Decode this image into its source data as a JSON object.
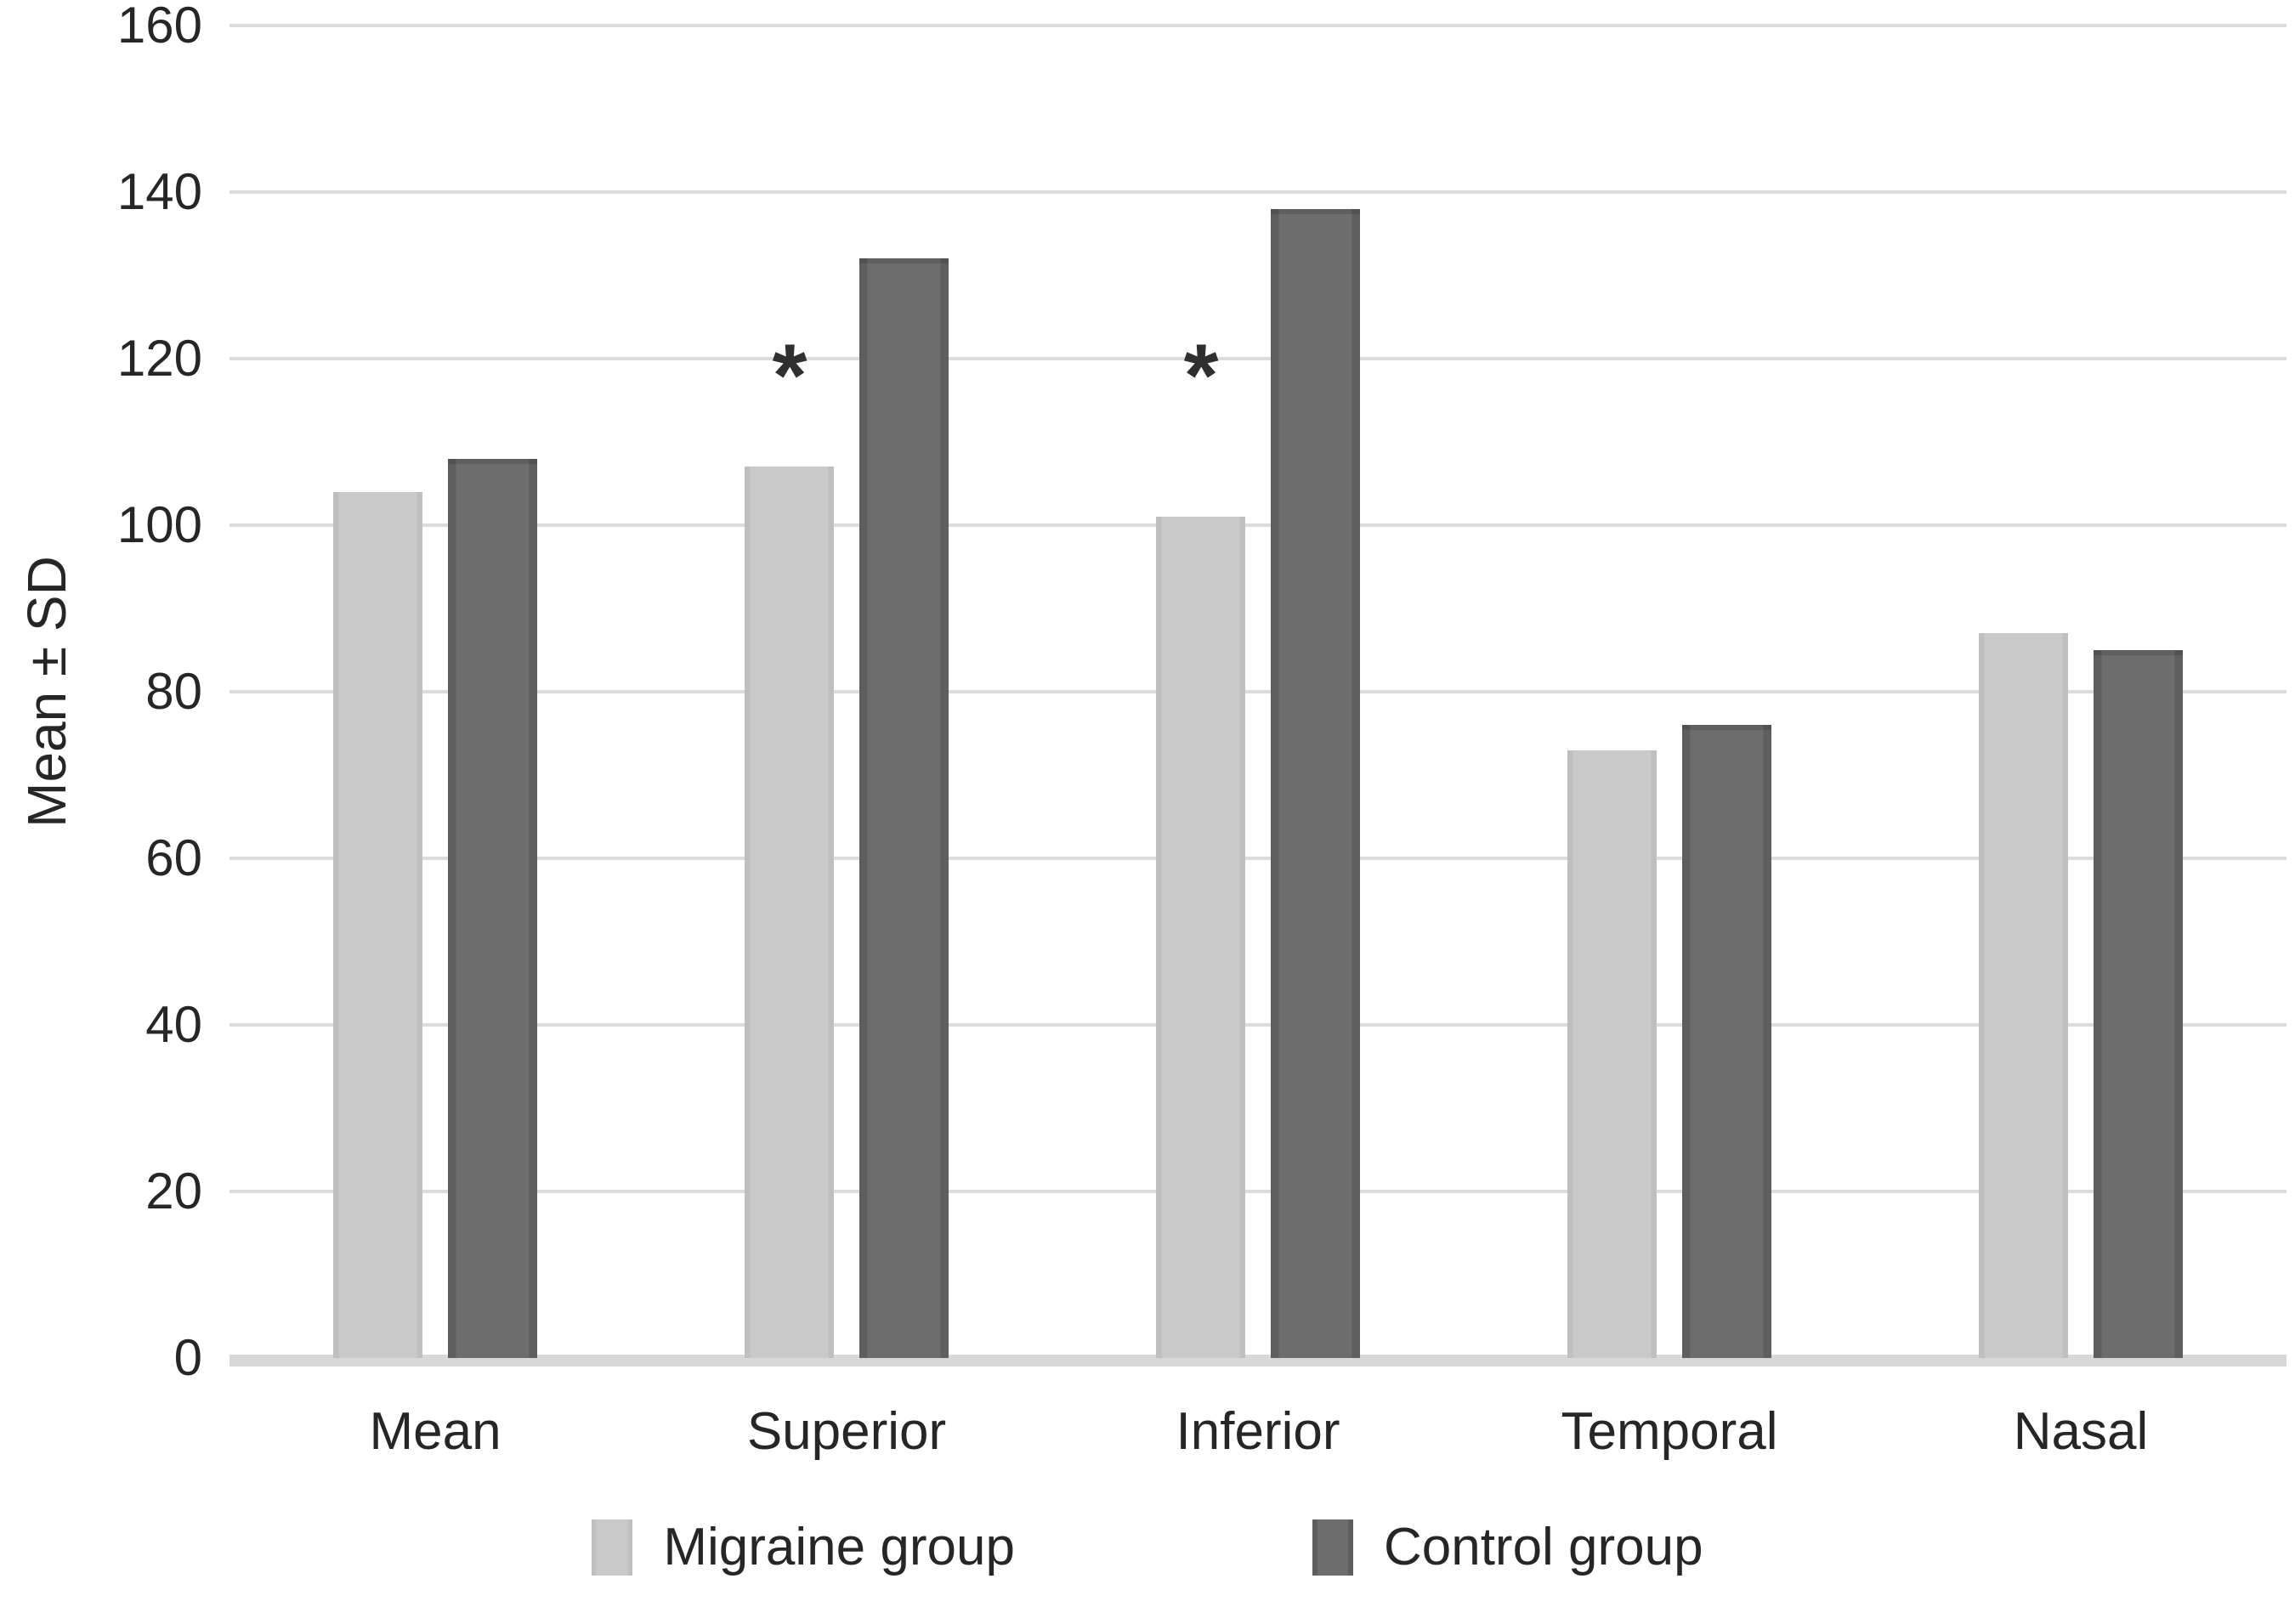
{
  "chart_data": {
    "type": "bar",
    "title": "",
    "xlabel": "",
    "ylabel": "Mean ± SD",
    "categories": [
      "Mean",
      "Superior",
      "Inferior",
      "Temporal",
      "Nasal"
    ],
    "series": [
      {
        "name": "Migraine group",
        "color": "#c8c8c8",
        "values": [
          104,
          107,
          101,
          73,
          87
        ]
      },
      {
        "name": "Control group",
        "color": "#6a6a6a",
        "values": [
          108,
          132,
          138,
          76,
          85
        ]
      }
    ],
    "significance_markers": [
      "",
      "*",
      "*",
      "",
      ""
    ],
    "significance_marker_value": 118,
    "ylim": [
      0,
      160
    ],
    "yticks": [
      0,
      20,
      40,
      60,
      80,
      100,
      120,
      140,
      160
    ],
    "grid": true,
    "legend_position": "bottom",
    "colors": {
      "bar_light": "#c8c8c8",
      "bar_dark": "#6a6a6a",
      "gridline": "#dcdcdc",
      "axis_line": "#d8d8d8",
      "text": "#262626",
      "asterisk": "#2f2f2f"
    }
  }
}
